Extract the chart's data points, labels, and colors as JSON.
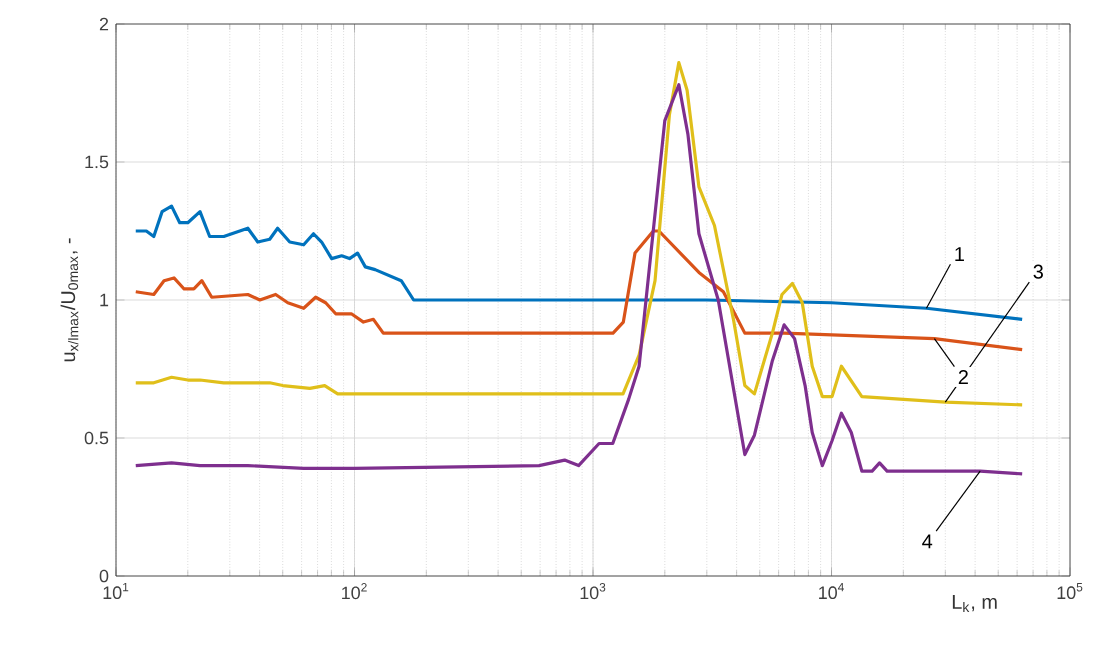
{
  "chart_data": {
    "type": "line",
    "xlabel": "L$_{k}$, m",
    "ylabel": "u$_{x/lmax}$/U$_{0max}$, -",
    "log": "x",
    "grid": true,
    "xlim": [
      10,
      100000
    ],
    "xticks": [
      {
        "value": 10,
        "label": "10$^{1}$"
      },
      {
        "value": 100,
        "label": "10$^{2}$"
      },
      {
        "value": 1000,
        "label": "10$^{3}$"
      },
      {
        "value": 10000,
        "label": "10$^{4}$"
      },
      {
        "value": 100000,
        "label": "10$^{5}$"
      }
    ],
    "ylim": [
      0,
      2
    ],
    "yticks": [
      0,
      0.5,
      1,
      1.5,
      2
    ],
    "series": [
      {
        "name": "1",
        "color": "#0072bd",
        "x": [
          12.1,
          13.4,
          14.4,
          15.6,
          17.1,
          18.5,
          20.0,
          22.5,
          24.7,
          28.3,
          35.7,
          39.3,
          44.1,
          47.6,
          53.5,
          61.2,
          67.3,
          72.8,
          80.2,
          88.3,
          95.3,
          103,
          111,
          122,
          157,
          177,
          3000,
          10000,
          25000,
          63000
        ],
        "values": [
          1.25,
          1.25,
          1.23,
          1.32,
          1.34,
          1.28,
          1.28,
          1.32,
          1.23,
          1.23,
          1.26,
          1.21,
          1.22,
          1.26,
          1.21,
          1.2,
          1.24,
          1.21,
          1.15,
          1.16,
          1.15,
          1.17,
          1.12,
          1.11,
          1.07,
          1.0,
          1.0,
          0.99,
          0.97,
          0.93
        ]
      },
      {
        "name": "2",
        "color": "#d95319",
        "x": [
          12.1,
          14.4,
          15.9,
          17.5,
          19.3,
          21.2,
          22.9,
          25.2,
          35.7,
          40.1,
          46.7,
          52.5,
          61.2,
          68.7,
          75.7,
          83.4,
          97.0,
          109,
          120,
          132,
          1213,
          1340,
          1500,
          1790,
          1890,
          2780,
          3520,
          4330,
          6330,
          27000,
          63000
        ],
        "values": [
          1.03,
          1.02,
          1.07,
          1.08,
          1.04,
          1.04,
          1.07,
          1.01,
          1.02,
          1.0,
          1.02,
          0.99,
          0.97,
          1.01,
          0.99,
          0.95,
          0.95,
          0.92,
          0.93,
          0.88,
          0.88,
          0.92,
          1.17,
          1.25,
          1.25,
          1.1,
          1.03,
          0.88,
          0.88,
          0.86,
          0.82
        ]
      },
      {
        "name": "3",
        "color": "#e0bf1a",
        "x": [
          12.1,
          14.4,
          17.1,
          20.0,
          22.5,
          28.3,
          35.7,
          44.1,
          50.0,
          65.0,
          75.0,
          85.0,
          1336,
          1560,
          1820,
          2090,
          2290,
          2480,
          2780,
          3230,
          3880,
          4330,
          4750,
          5650,
          6200,
          6860,
          7540,
          8300,
          9150,
          10050,
          11000,
          13400,
          30000,
          63000
        ],
        "values": [
          0.7,
          0.7,
          0.72,
          0.71,
          0.71,
          0.7,
          0.7,
          0.7,
          0.69,
          0.68,
          0.69,
          0.66,
          0.66,
          0.8,
          1.07,
          1.67,
          1.86,
          1.76,
          1.41,
          1.27,
          0.93,
          0.69,
          0.66,
          0.88,
          1.02,
          1.06,
          0.99,
          0.76,
          0.65,
          0.65,
          0.76,
          0.65,
          0.63,
          0.62
        ]
      },
      {
        "name": "4",
        "color": "#7e2f8e",
        "x": [
          12.1,
          17.1,
          22.5,
          35.7,
          61.2,
          100,
          594,
          760,
          870,
          1060,
          1210,
          1410,
          1560,
          2000,
          2290,
          2500,
          2780,
          3350,
          4330,
          4750,
          5650,
          6330,
          7000,
          7750,
          8300,
          9150,
          10050,
          11000,
          12100,
          13400,
          14800,
          15900,
          17100,
          42000,
          63000
        ],
        "values": [
          0.4,
          0.41,
          0.4,
          0.4,
          0.39,
          0.39,
          0.4,
          0.42,
          0.4,
          0.48,
          0.48,
          0.64,
          0.76,
          1.65,
          1.78,
          1.6,
          1.24,
          1.0,
          0.44,
          0.51,
          0.78,
          0.91,
          0.86,
          0.69,
          0.52,
          0.4,
          0.49,
          0.59,
          0.52,
          0.38,
          0.38,
          0.41,
          0.38,
          0.38,
          0.37
        ]
      }
    ]
  }
}
